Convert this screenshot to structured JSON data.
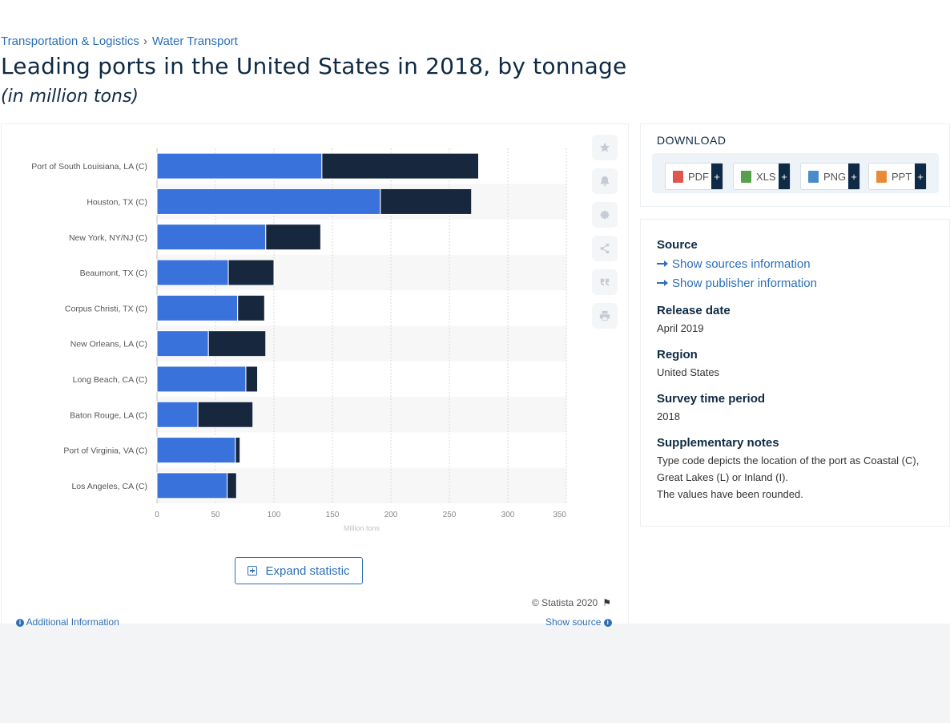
{
  "breadcrumb": {
    "items": [
      "Transportation & Logistics",
      "Water Transport"
    ]
  },
  "title": "Leading ports in the United States in 2018, by tonnage",
  "subtitle": "(in million tons)",
  "chart_data": {
    "type": "bar",
    "orientation": "horizontal",
    "stacked": true,
    "categories": [
      "Port of South Louisiana, LA (C)",
      "Houston, TX (C)",
      "New York, NY/NJ (C)",
      "Beaumont, TX (C)",
      "Corpus Christi, TX (C)",
      "New Orleans, LA (C)",
      "Long Beach, CA (C)",
      "Baton Rouge, LA (C)",
      "Port of Virginia, VA (C)",
      "Los Angeles, CA (C)"
    ],
    "series": [
      {
        "color": "#3a72dc",
        "values": [
          141,
          191,
          93,
          61,
          69,
          44,
          76,
          35,
          67,
          60
        ]
      },
      {
        "color": "#17283e",
        "values": [
          134,
          78,
          47,
          39,
          23,
          49,
          10,
          47,
          4,
          8
        ]
      }
    ],
    "xticks": [
      "0",
      "50",
      "100",
      "150",
      "200",
      "250",
      "300",
      "350"
    ],
    "xlim": [
      0,
      350
    ],
    "xlabel": "Million tons",
    "grid": true,
    "legend": "none"
  },
  "side_actions": [
    "star-icon",
    "bell-icon",
    "gear-icon",
    "share-icon",
    "quote-icon",
    "print-icon"
  ],
  "expand_label": "Expand statistic",
  "copyright": "© Statista 2020",
  "additional_info": "Additional Information",
  "show_source": "Show source",
  "download": {
    "title": "DOWNLOAD",
    "buttons": [
      {
        "label": "PDF",
        "color": "#e0564d"
      },
      {
        "label": "XLS",
        "color": "#55a04a"
      },
      {
        "label": "PNG",
        "color": "#4a8cc9"
      },
      {
        "label": "PPT",
        "color": "#e98a36"
      }
    ],
    "plus": "+"
  },
  "info": {
    "source_h": "Source",
    "show_sources": "Show sources information",
    "show_publisher": "Show publisher information",
    "release_h": "Release date",
    "release_v": "April 2019",
    "region_h": "Region",
    "region_v": "United States",
    "period_h": "Survey time period",
    "period_v": "2018",
    "notes_h": "Supplementary notes",
    "notes_v1": "Type code depicts the location of the port as Coastal (C), Great Lakes (L) or Inland (I).",
    "notes_v2": "The values have been rounded."
  }
}
